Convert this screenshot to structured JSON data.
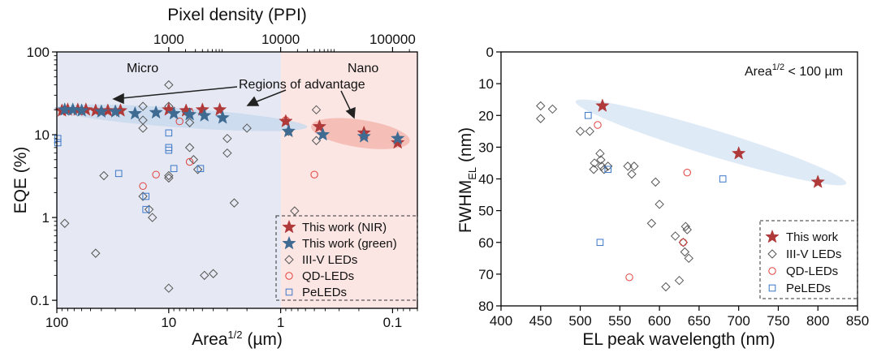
{
  "colors": {
    "nir": "#B03A3A",
    "green": "#3F6B92",
    "iiiv": "#555555",
    "qd": "#E0403C",
    "pe": "#3C78C8",
    "micro_bg": "#E6E9F3",
    "nano_bg": "#FBE6E4",
    "micro_label": "#2E6DA4",
    "nano_label": "#C0312F",
    "band_blue": "#C9D9EE",
    "band_red": "#F3B7B0",
    "band_light": "#DCE8F6"
  },
  "chart_data": [
    {
      "type": "scatter",
      "title": "",
      "xlabel": "Area^1/2 (µm)",
      "xlabel_main": "Area",
      "xlabel_sup": "1/2",
      "xlabel_unit": " (µm)",
      "ylabel": "EQE (%)",
      "x_scale": "log",
      "x_reversed": true,
      "xlim": [
        100,
        0.06
      ],
      "y_scale": "log",
      "ylim": [
        0.08,
        100
      ],
      "x_ticks": [
        100,
        10,
        1,
        0.1
      ],
      "x_tick_labels": [
        "100",
        "10",
        "1",
        "0.1"
      ],
      "y_ticks": [
        0.1,
        1,
        10,
        100
      ],
      "y_tick_labels": [
        "0.1",
        "1",
        "10",
        "100"
      ],
      "top_axis": {
        "label": "Pixel density (PPI)",
        "ticks": [
          1000,
          10000,
          100000
        ],
        "tick_labels": [
          "1000",
          "10000",
          "100000"
        ],
        "tick_area_positions": [
          10,
          1,
          0.1
        ]
      },
      "regions": [
        {
          "name": "Micro",
          "x_from": 100,
          "x_to": 1
        },
        {
          "name": "Nano",
          "x_from": 1,
          "x_to": 0.06
        }
      ],
      "annotations": {
        "regions_text": "Regions of advantage",
        "micro": "Micro",
        "nano": "Nano"
      },
      "series": [
        {
          "name": "This work (NIR)",
          "marker": "star",
          "color_key": "nir",
          "points": [
            [
              90,
              19.5
            ],
            [
              80,
              20
            ],
            [
              65,
              20
            ],
            [
              55,
              20
            ],
            [
              45,
              19.5
            ],
            [
              35,
              19.5
            ],
            [
              27,
              19.5
            ],
            [
              10,
              20
            ],
            [
              7,
              19.5
            ],
            [
              5,
              20
            ],
            [
              3.5,
              20
            ],
            [
              0.9,
              14.5
            ],
            [
              0.45,
              12.5
            ],
            [
              0.18,
              10.5
            ],
            [
              0.09,
              8
            ]
          ]
        },
        {
          "name": "This work (green)",
          "marker": "star",
          "color_key": "green",
          "points": [
            [
              85,
              20
            ],
            [
              72,
              20
            ],
            [
              60,
              19.5
            ],
            [
              40,
              19
            ],
            [
              30,
              19
            ],
            [
              20,
              18
            ],
            [
              13,
              18.5
            ],
            [
              9,
              18
            ],
            [
              6.5,
              17.5
            ],
            [
              4.8,
              17
            ],
            [
              3.3,
              16
            ],
            [
              0.85,
              11
            ],
            [
              0.42,
              10
            ],
            [
              0.18,
              9.5
            ],
            [
              0.09,
              9
            ]
          ]
        },
        {
          "name": "III-V LEDs",
          "marker": "diamond",
          "color_key": "iiiv",
          "points": [
            [
              85,
              0.85
            ],
            [
              45,
              0.37
            ],
            [
              38,
              3.2
            ],
            [
              17,
              22
            ],
            [
              17,
              15
            ],
            [
              17,
              12
            ],
            [
              17,
              1.8
            ],
            [
              15,
              1.25
            ],
            [
              14,
              1.0
            ],
            [
              10,
              40
            ],
            [
              10,
              22
            ],
            [
              10,
              3.2
            ],
            [
              10,
              3.0
            ],
            [
              10,
              0.14
            ],
            [
              7,
              19
            ],
            [
              6.5,
              14
            ],
            [
              6.5,
              7
            ],
            [
              6,
              5
            ],
            [
              5.5,
              3.8
            ],
            [
              4.8,
              0.2
            ],
            [
              4,
              0.21
            ],
            [
              3,
              9
            ],
            [
              3,
              6
            ],
            [
              2.6,
              1.5
            ],
            [
              2,
              12
            ],
            [
              0.85,
              11
            ],
            [
              0.75,
              1.2
            ],
            [
              0.48,
              20
            ],
            [
              0.48,
              8.5
            ]
          ]
        },
        {
          "name": "QD-LEDs",
          "marker": "circle",
          "color_key": "qd",
          "points": [
            [
              17,
              2.4
            ],
            [
              13,
              3.3
            ],
            [
              8,
              14.5
            ],
            [
              6.5,
              19
            ],
            [
              6.5,
              4.7
            ],
            [
              0.9,
              15
            ],
            [
              0.5,
              3.3
            ]
          ]
        },
        {
          "name": "PeLEDs",
          "marker": "square",
          "color_key": "pe",
          "points": [
            [
              98,
              9
            ],
            [
              98,
              8
            ],
            [
              28,
              3.4
            ],
            [
              16,
              1.8
            ],
            [
              16,
              1.25
            ],
            [
              10,
              10.5
            ],
            [
              10,
              7
            ],
            [
              10,
              6.5
            ],
            [
              9,
              3.9
            ],
            [
              5.2,
              3.9
            ]
          ]
        }
      ],
      "legend": {
        "position": "bottom-right",
        "entries": [
          "This work (NIR)",
          "This work (green)",
          "III-V LEDs",
          "QD-LEDs",
          "PeLEDs"
        ]
      }
    },
    {
      "type": "scatter",
      "title": "",
      "xlabel": "EL peak wavelength (nm)",
      "ylabel": "FWHM_EL (nm)",
      "ylabel_main": "FWHM",
      "ylabel_sub": "EL",
      "ylabel_unit": " (nm)",
      "xlim": [
        400,
        850
      ],
      "ylim": [
        0,
        80
      ],
      "y_reversed": true,
      "x_ticks": [
        400,
        450,
        500,
        550,
        600,
        650,
        700,
        750,
        800,
        850
      ],
      "x_tick_labels": [
        "400",
        "450",
        "500",
        "550",
        "600",
        "650",
        "700",
        "750",
        "800",
        "850"
      ],
      "y_ticks": [
        0,
        10,
        20,
        30,
        40,
        50,
        60,
        70,
        80
      ],
      "y_tick_labels": [
        "0",
        "10",
        "20",
        "30",
        "40",
        "50",
        "60",
        "70",
        "80"
      ],
      "annotation": {
        "text_main": "Area",
        "text_sup": "1/2",
        "text_rest": " < 100 µm"
      },
      "series": [
        {
          "name": "This work",
          "marker": "star",
          "color_key": "nir",
          "points": [
            [
              528,
              17
            ],
            [
              700,
              32
            ],
            [
              800,
              41
            ]
          ]
        },
        {
          "name": "III-V LEDs",
          "marker": "diamond",
          "color_key": "iiiv",
          "points": [
            [
              450,
              17
            ],
            [
              450,
              21
            ],
            [
              465,
              18
            ],
            [
              500,
              25
            ],
            [
              512,
              25
            ],
            [
              517,
              37
            ],
            [
              518,
              35
            ],
            [
              525,
              32
            ],
            [
              526,
              34
            ],
            [
              527,
              36
            ],
            [
              530,
              37
            ],
            [
              535,
              36
            ],
            [
              560,
              36
            ],
            [
              565,
              38.5
            ],
            [
              568,
              36
            ],
            [
              595,
              41
            ],
            [
              590,
              54
            ],
            [
              600,
              48
            ],
            [
              608,
              74
            ],
            [
              620,
              58
            ],
            [
              625,
              72
            ],
            [
              630,
              60
            ],
            [
              632,
              63
            ],
            [
              633,
              55
            ],
            [
              635,
              56
            ],
            [
              637,
              65
            ]
          ]
        },
        {
          "name": "QD-LEDs",
          "marker": "circle",
          "color_key": "qd",
          "points": [
            [
              522,
              23
            ],
            [
              562,
              71
            ],
            [
              630,
              60
            ],
            [
              635,
              38
            ]
          ]
        },
        {
          "name": "PeLEDs",
          "marker": "square",
          "color_key": "pe",
          "points": [
            [
              510,
              20
            ],
            [
              535,
              37
            ],
            [
              525,
              60
            ],
            [
              680,
              40
            ]
          ]
        }
      ],
      "legend": {
        "position": "bottom-right",
        "entries": [
          "This work",
          "III-V LEDs",
          "QD-LEDs",
          "PeLEDs"
        ]
      }
    }
  ]
}
